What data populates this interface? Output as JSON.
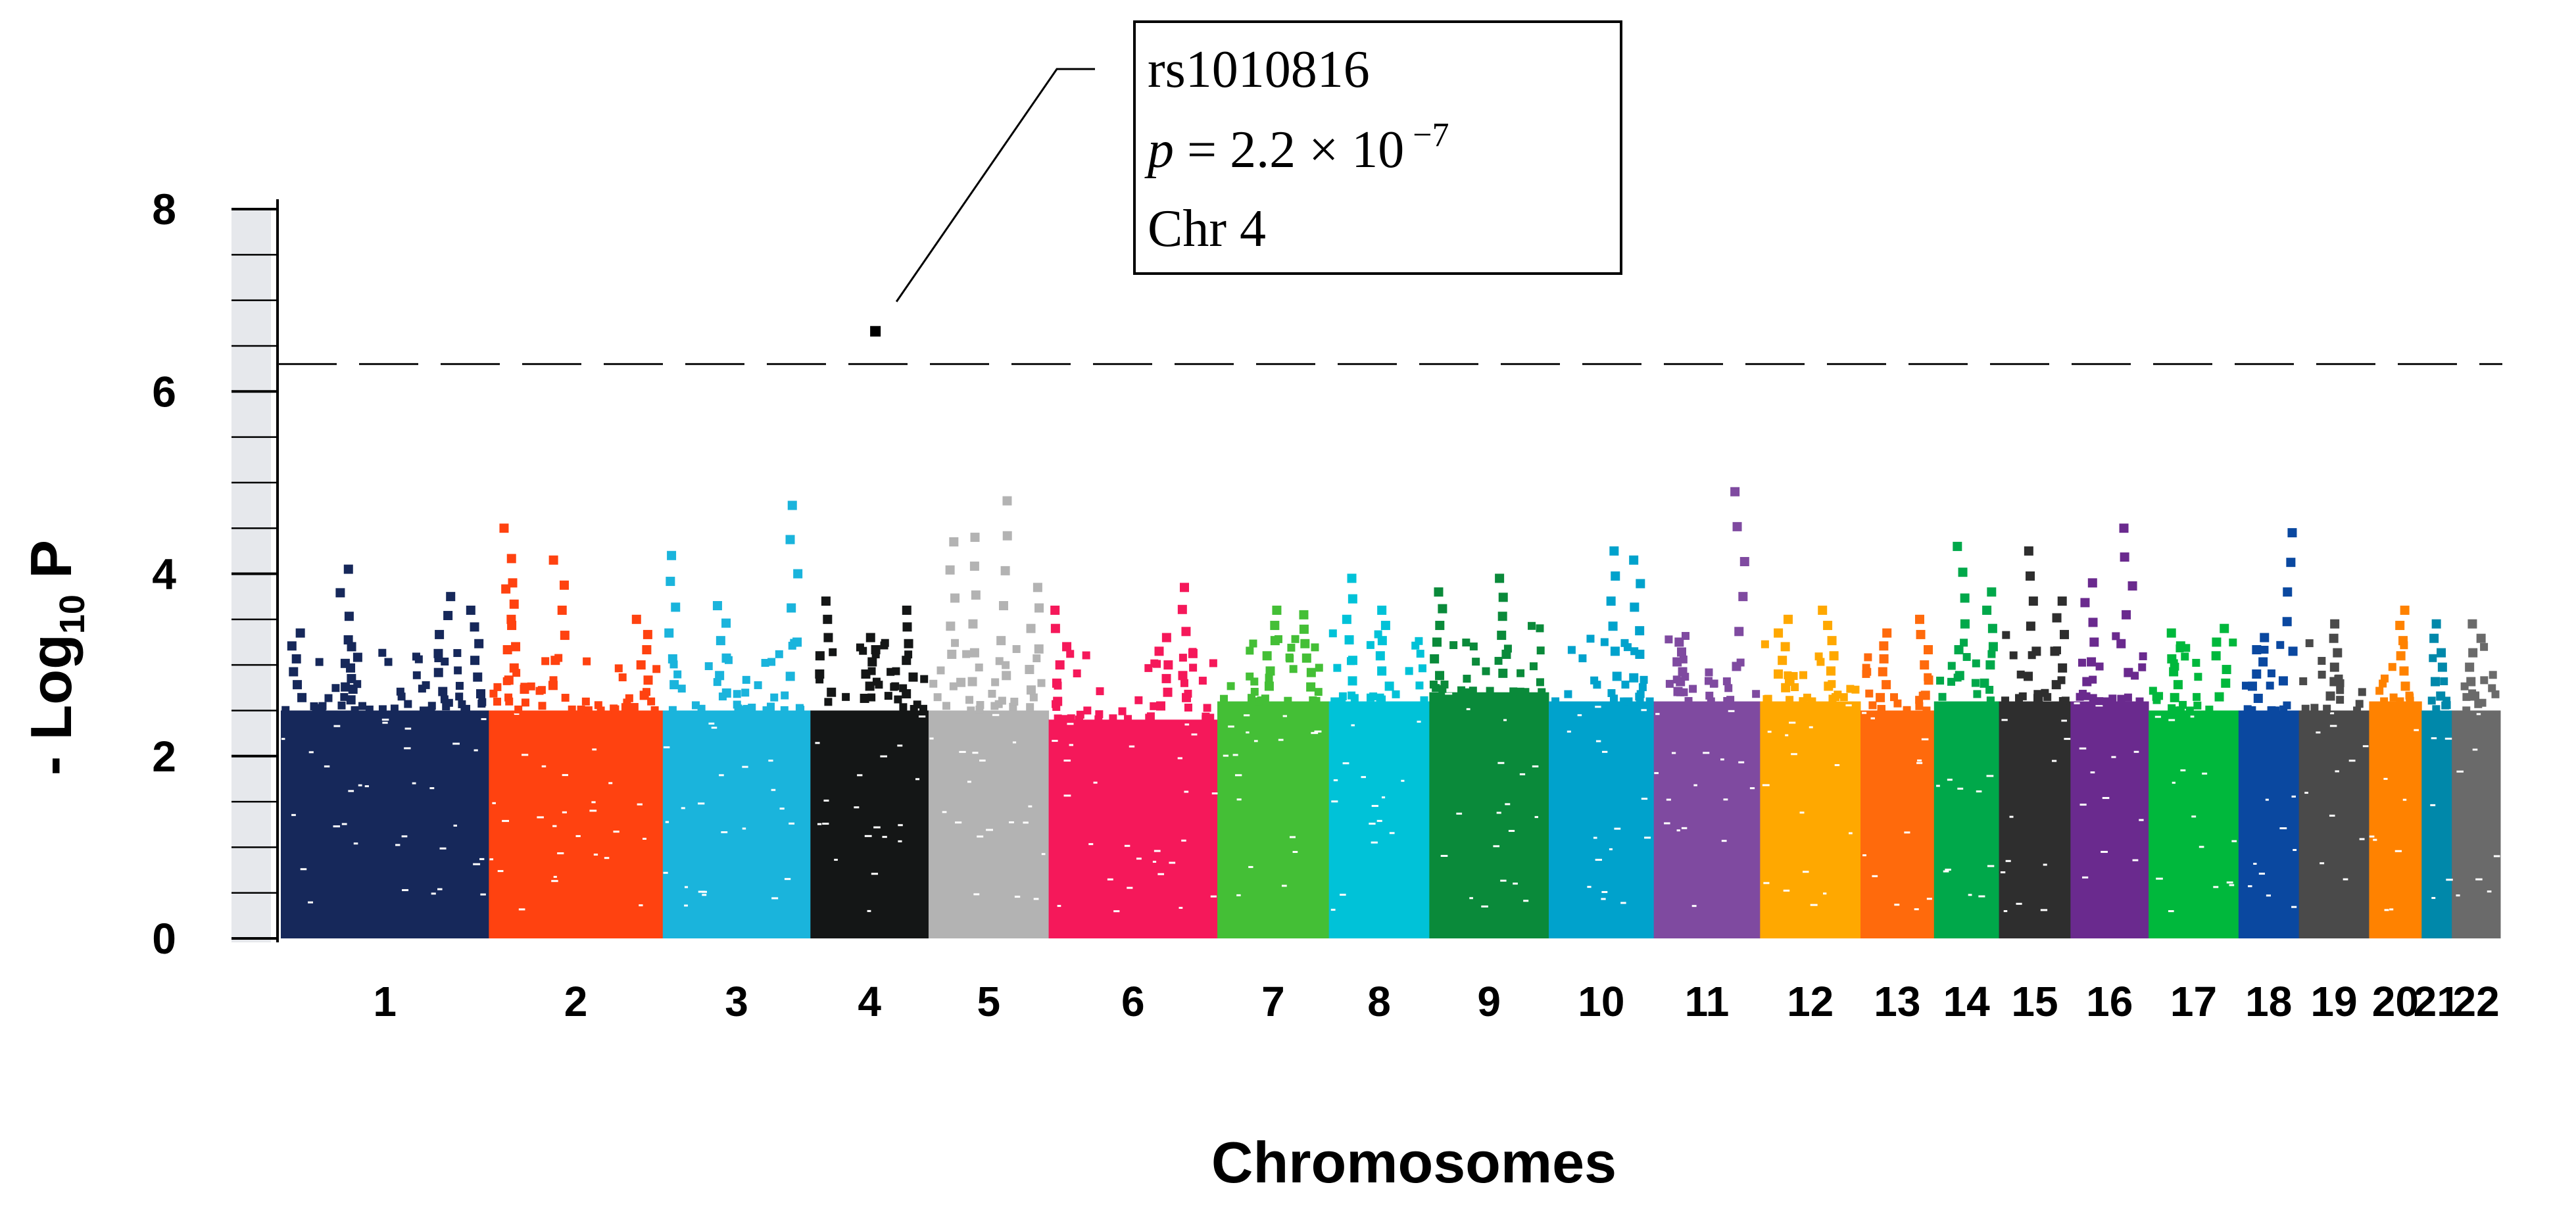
{
  "chart_data": {
    "type": "scatter",
    "subtype": "manhattan",
    "xlabel": "Chromosomes",
    "ylabel_prefix": "- Log",
    "ylabel_sub": "10",
    "ylabel_suffix": " P",
    "ylim": [
      0,
      8
    ],
    "y_ticks": [
      "0",
      "2",
      "4",
      "6",
      "8"
    ],
    "threshold": 6.3,
    "chromosomes": [
      {
        "label": "1",
        "color": "#16285a",
        "base": 2.5,
        "peaks": [
          [
            0.05,
            3.35
          ],
          [
            0.3,
            4.05
          ],
          [
            0.35,
            3.2
          ],
          [
            0.8,
            3.75
          ],
          [
            0.96,
            3.6
          ]
        ]
      },
      {
        "label": "2",
        "color": "#ff4210",
        "base": 2.5,
        "peaks": [
          [
            0.1,
            4.5
          ],
          [
            0.15,
            3.9
          ],
          [
            0.4,
            4.15
          ],
          [
            0.9,
            3.5
          ]
        ]
      },
      {
        "label": "3",
        "color": "#1ab4dc",
        "base": 2.5,
        "peaks": [
          [
            0.05,
            4.2
          ],
          [
            0.4,
            3.65
          ],
          [
            0.9,
            4.75
          ]
        ]
      },
      {
        "label": "4",
        "color": "#141616",
        "base": 2.5,
        "peaks": [
          [
            0.1,
            3.7
          ],
          [
            0.5,
            3.3
          ],
          [
            0.85,
            3.6
          ]
        ]
      },
      {
        "label": "5",
        "color": "#b3b3b3",
        "base": 2.5,
        "peaks": [
          [
            0.2,
            4.35
          ],
          [
            0.4,
            4.4
          ],
          [
            0.65,
            4.8
          ],
          [
            0.9,
            3.85
          ]
        ]
      },
      {
        "label": "6",
        "color": "#f5185a",
        "base": 2.4,
        "peaks": [
          [
            0.05,
            3.6
          ],
          [
            0.7,
            3.3
          ],
          [
            0.85,
            3.85
          ]
        ]
      },
      {
        "label": "7",
        "color": "#44bf36",
        "base": 2.6,
        "peaks": [
          [
            0.5,
            3.6
          ],
          [
            0.85,
            3.55
          ]
        ]
      },
      {
        "label": "8",
        "color": "#00c2d8",
        "base": 2.6,
        "peaks": [
          [
            0.2,
            3.95
          ],
          [
            0.55,
            3.6
          ]
        ]
      },
      {
        "label": "9",
        "color": "#0a8a3a",
        "base": 2.7,
        "peaks": [
          [
            0.05,
            3.8
          ],
          [
            0.65,
            3.95
          ]
        ]
      },
      {
        "label": "10",
        "color": "#00a2cc",
        "base": 2.6,
        "peaks": [
          [
            0.6,
            4.25
          ],
          [
            0.9,
            4.15
          ]
        ]
      },
      {
        "label": "11",
        "color": "#7f4aa0",
        "base": 2.6,
        "peaks": [
          [
            0.2,
            3.25
          ],
          [
            0.85,
            4.9
          ]
        ]
      },
      {
        "label": "12",
        "color": "#ffa800",
        "base": 2.6,
        "peaks": [
          [
            0.2,
            3.5
          ],
          [
            0.7,
            3.6
          ]
        ]
      },
      {
        "label": "13",
        "color": "#ff6a0c",
        "base": 2.5,
        "peaks": [
          [
            0.3,
            3.35
          ],
          [
            0.9,
            3.5
          ]
        ]
      },
      {
        "label": "14",
        "color": "#00a84a",
        "base": 2.6,
        "peaks": [
          [
            0.4,
            4.3
          ],
          [
            0.9,
            3.8
          ]
        ]
      },
      {
        "label": "15",
        "color": "#2e2e2e",
        "base": 2.6,
        "peaks": [
          [
            0.5,
            4.25
          ],
          [
            0.9,
            3.7
          ]
        ]
      },
      {
        "label": "16",
        "color": "#6a2a8e",
        "base": 2.6,
        "peaks": [
          [
            0.2,
            3.9
          ],
          [
            0.75,
            4.5
          ]
        ]
      },
      {
        "label": "17",
        "color": "#00b83c",
        "base": 2.5,
        "peaks": [
          [
            0.3,
            3.35
          ],
          [
            0.85,
            3.4
          ]
        ]
      },
      {
        "label": "18",
        "color": "#0a48a0",
        "base": 2.5,
        "peaks": [
          [
            0.3,
            3.3
          ],
          [
            0.9,
            4.45
          ]
        ]
      },
      {
        "label": "19",
        "color": "#4a4a4a",
        "base": 2.5,
        "peaks": [
          [
            0.5,
            3.45
          ]
        ]
      },
      {
        "label": "20",
        "color": "#ff8200",
        "base": 2.6,
        "peaks": [
          [
            0.6,
            3.6
          ]
        ]
      },
      {
        "label": "21",
        "color": "#0088aa",
        "base": 2.5,
        "peaks": [
          [
            0.5,
            3.45
          ]
        ]
      },
      {
        "label": "22",
        "color": "#6a6a6a",
        "base": 2.5,
        "peaks": [
          [
            0.5,
            3.45
          ]
        ]
      }
    ],
    "top_hit": {
      "snp": "rs1010816",
      "chromosome": "4",
      "position_frac": 0.55,
      "neg_log10_p": 6.66,
      "annotation_line1": "rs1010816",
      "annotation_p_var": "p",
      "annotation_p_eq": " = 2.2 × 10",
      "annotation_p_exp": " −7",
      "annotation_line3": "Chr 4"
    }
  }
}
